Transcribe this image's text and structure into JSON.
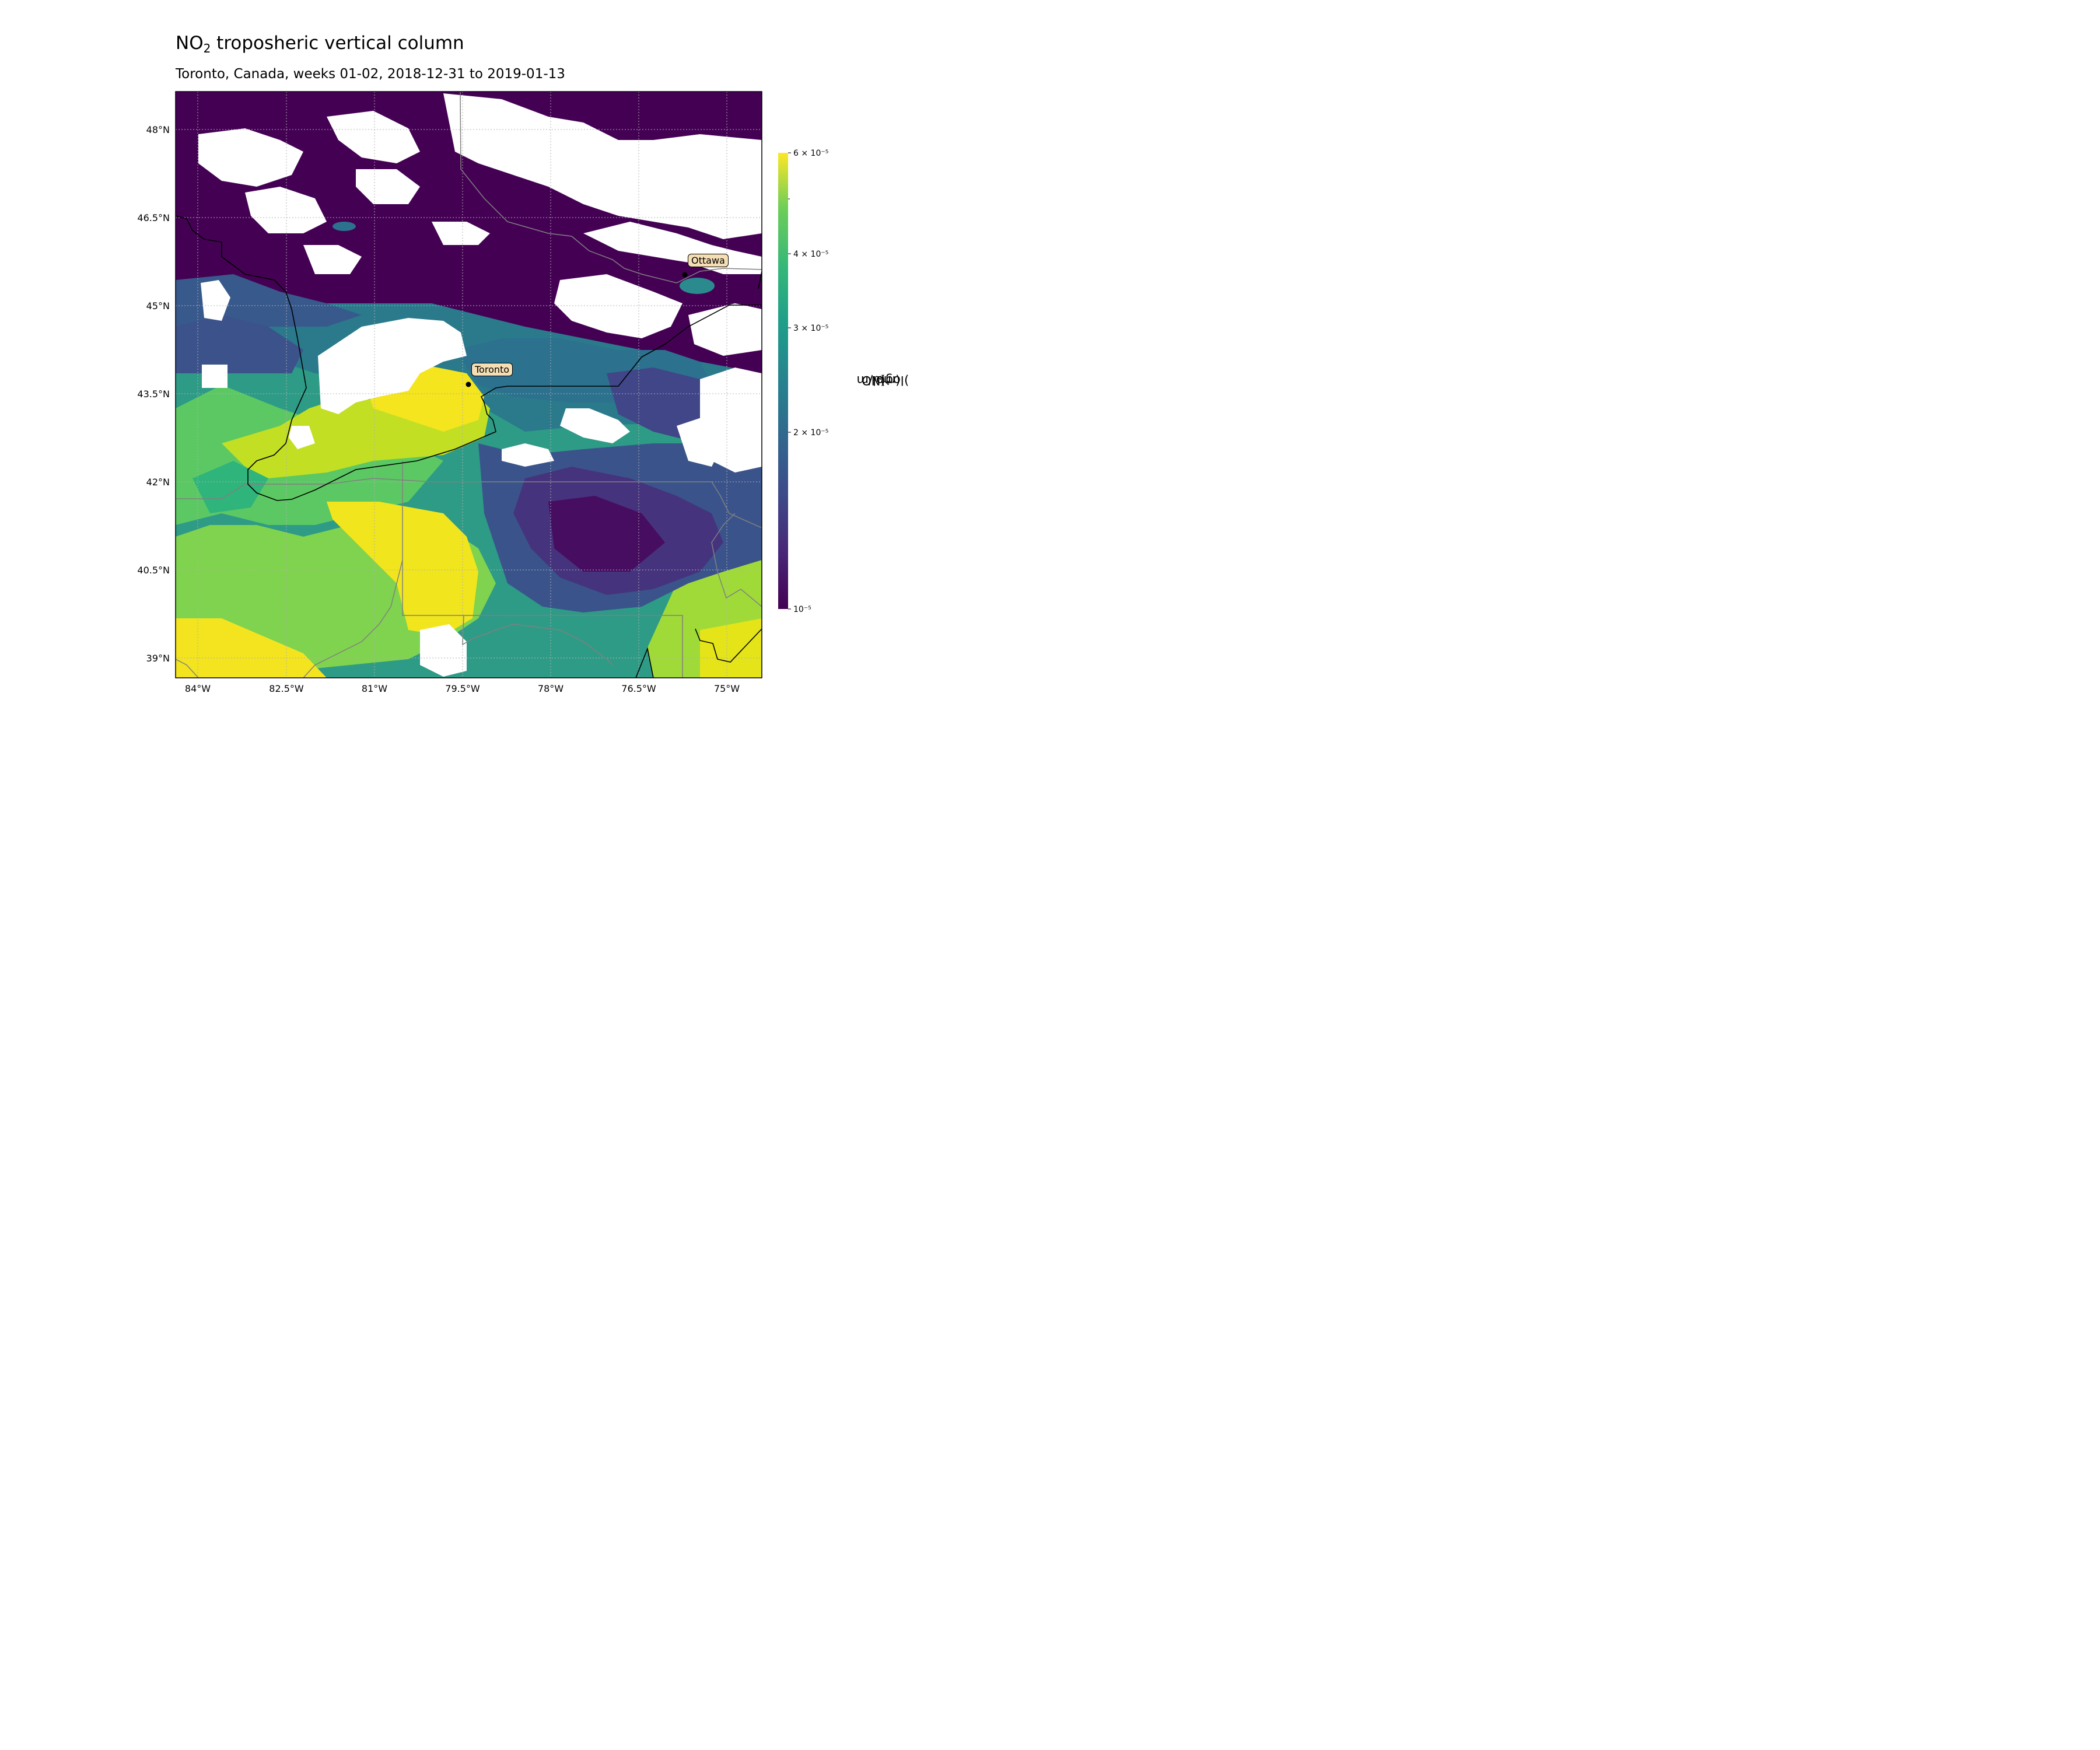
{
  "title": {
    "main": "NO",
    "subscript": "2",
    "rest": " troposheric vertical column"
  },
  "subtitle": "Toronto, Canada, weeks 01-02, 2018-12-31 to 2019-01-13",
  "map": {
    "colormap": "viridis",
    "missing_data_color": "#ffffff",
    "gridlines": true,
    "x_tick_labels": [
      "84°W",
      "82.5°W",
      "81°W",
      "79.5°W",
      "78°W",
      "76.5°W",
      "75°W"
    ],
    "y_tick_labels": [
      "48°N",
      "46.5°N",
      "45°N",
      "43.5°N",
      "42°N",
      "40.5°N",
      "39°N"
    ],
    "cities": [
      {
        "name": "Toronto",
        "lon": -79.38,
        "lat": 43.65
      },
      {
        "name": "Ottawa",
        "lon": -75.7,
        "lat": 45.42
      }
    ],
    "border_colors": {
      "coastline": "#000000",
      "admin": "#808080"
    }
  },
  "colorbar": {
    "label_prefix": "log(NO",
    "label_sub": "2",
    "label_mid": ") (mol/m",
    "label_sup": "2",
    "label_suffix": ")",
    "scale": "log",
    "range": [
      1e-05,
      6e-05
    ],
    "tick_labels": [
      "6 × 10⁻⁵",
      "4 × 10⁻⁵",
      "3 × 10⁻⁵",
      "2 × 10⁻⁵",
      "10⁻⁵"
    ],
    "tick_values": [
      6e-05,
      4e-05,
      3e-05,
      2e-05,
      1e-05
    ],
    "colors": [
      "#440154",
      "#3b528b",
      "#21918c",
      "#5ec962",
      "#fde725"
    ]
  }
}
